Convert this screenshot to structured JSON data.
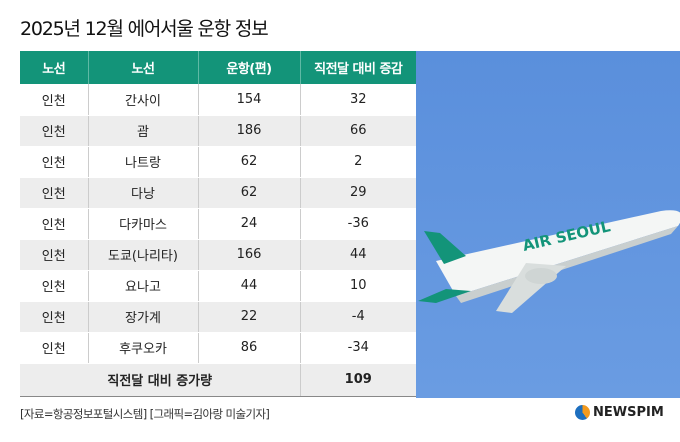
{
  "title": "2025년 12월 에어서울 운항 정보",
  "chart_data": {
    "type": "table",
    "columns": [
      "노선",
      "노선",
      "운항(편)",
      "직전달 대비 증감"
    ],
    "rows": [
      [
        "인천",
        "간사이",
        "154",
        "32"
      ],
      [
        "인천",
        "괌",
        "186",
        "66"
      ],
      [
        "인천",
        "나트랑",
        "62",
        "2"
      ],
      [
        "인천",
        "다낭",
        "62",
        "29"
      ],
      [
        "인천",
        "다카마스",
        "24",
        "-36"
      ],
      [
        "인천",
        "도쿄(나리타)",
        "166",
        "44"
      ],
      [
        "인천",
        "요나고",
        "44",
        "10"
      ],
      [
        "인천",
        "장가계",
        "22",
        "-4"
      ],
      [
        "인천",
        "후쿠오카",
        "86",
        "-34"
      ]
    ],
    "total": {
      "label": "직전달 대비 증가량",
      "value": "109"
    }
  },
  "photo": {
    "livery_text": "AIR SEOUL",
    "sky_color": "#5a8fdc",
    "brand_color": "#139479"
  },
  "source": "[자료=항공정보포털시스템] [그래픽=김아랑 미술기자]",
  "logo": "NEWSPIM"
}
